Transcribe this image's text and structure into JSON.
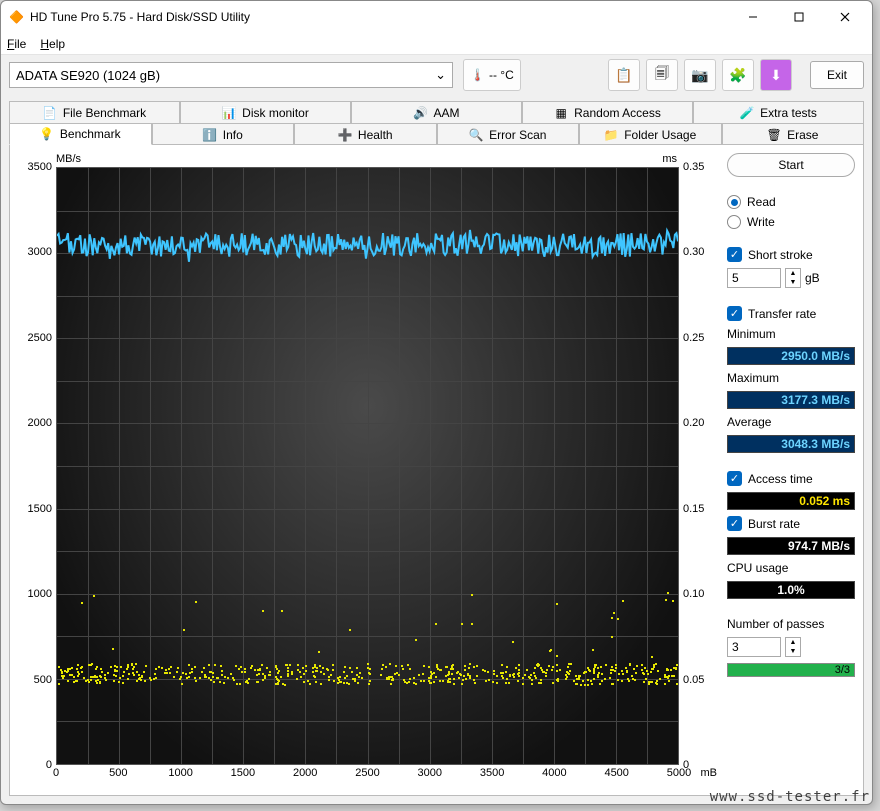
{
  "window": {
    "title": "HD Tune Pro 5.75 - Hard Disk/SSD Utility"
  },
  "menu": {
    "file": "File",
    "help": "Help"
  },
  "toolbar": {
    "device": "ADATA SE920 (1024 gB)",
    "temp": "-- °C",
    "exit": "Exit"
  },
  "tabs_top": [
    {
      "label": "File Benchmark",
      "icon": "📄"
    },
    {
      "label": "Disk monitor",
      "icon": "📊"
    },
    {
      "label": "AAM",
      "icon": "🔊"
    },
    {
      "label": "Random Access",
      "icon": "▦"
    },
    {
      "label": "Extra tests",
      "icon": "🧪"
    }
  ],
  "tabs_bottom": [
    {
      "label": "Benchmark",
      "icon": "💡",
      "active": true
    },
    {
      "label": "Info",
      "icon": "ℹ️"
    },
    {
      "label": "Health",
      "icon": "➕"
    },
    {
      "label": "Error Scan",
      "icon": "🔍"
    },
    {
      "label": "Folder Usage",
      "icon": "📁"
    },
    {
      "label": "Erase",
      "icon": "🗑"
    }
  ],
  "chart": {
    "y_unit_left": "MB/s",
    "y_unit_right": "ms",
    "x_unit": "mB",
    "y_left_ticks": [
      0,
      500,
      1000,
      1500,
      2000,
      2500,
      3000,
      3500
    ],
    "y_right_ticks": [
      0,
      0.05,
      0.1,
      0.15,
      0.2,
      0.25,
      0.3,
      0.35
    ],
    "x_ticks": [
      0,
      500,
      1000,
      1500,
      2000,
      2500,
      3000,
      3500,
      4000,
      4500,
      5000
    ],
    "x_minor_count": 20,
    "y_major_max": 3500,
    "y_minor_count": 14,
    "transfer_line_color": "#3fc5ff",
    "transfer_avg_mbs": 3048.3,
    "transfer_jitter_mbs": 70,
    "access_color": "#e6e600",
    "access_avg_ms": 0.052,
    "access_max_ms": 0.1,
    "plot_bg_inner": "#4a4a4a",
    "plot_bg_outer": "#111111",
    "grid_color": "#444444"
  },
  "side": {
    "start": "Start",
    "read": "Read",
    "write": "Write",
    "short_stroke": "Short stroke",
    "short_stroke_val": "5",
    "short_stroke_unit": "gB",
    "transfer_rate": "Transfer rate",
    "minimum_label": "Minimum",
    "minimum_val": "2950.0 MB/s",
    "maximum_label": "Maximum",
    "maximum_val": "3177.3 MB/s",
    "average_label": "Average",
    "average_val": "3048.3 MB/s",
    "access_time_label": "Access time",
    "access_time_val": "0.052 ms",
    "burst_label": "Burst rate",
    "burst_val": "974.7 MB/s",
    "cpu_label": "CPU usage",
    "cpu_val": "1.0%",
    "passes_label": "Number of passes",
    "passes_val": "3",
    "progress_text": "3/3",
    "progress_pct": 100
  },
  "watermark": "www.ssd-tester.fr"
}
